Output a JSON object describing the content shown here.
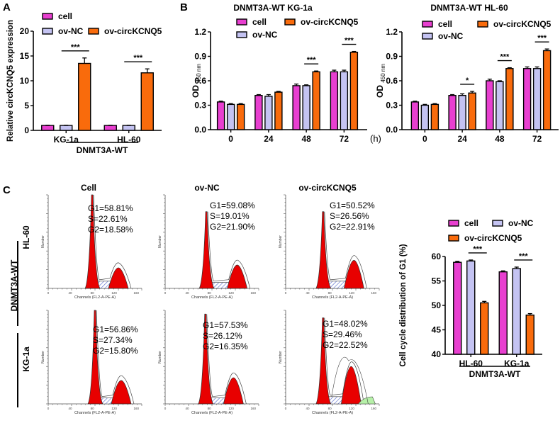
{
  "colors": {
    "cell": "#e83fd0",
    "ov_NC": "#c4c3f2",
    "ov_circKCNQ5": "#f96b0c",
    "flow_red": "#e80000",
    "flow_sphase_hatch": "#4f63c9",
    "flow_green": "#b6f0a8"
  },
  "panels": {
    "A": {
      "letter": "A"
    },
    "B": {
      "letter": "B"
    },
    "C": {
      "letter": "C"
    }
  },
  "chart_data": [
    {
      "id": "A",
      "type": "bar",
      "title": "",
      "ylabel": "Relative circKCNQ5 expression",
      "xlabel": "",
      "group_label": "DNMT3A-WT",
      "ylim": [
        0,
        20
      ],
      "yticks": [
        "0",
        "5",
        "10",
        "15",
        "20"
      ],
      "categories": [
        "KG-1a",
        "HL-60"
      ],
      "legend": [
        "cell",
        "ov-NC",
        "ov-circKCNQ5"
      ],
      "legend_placement": "top",
      "series": [
        {
          "name": "cell",
          "values": [
            1.0,
            1.0
          ],
          "errors": [
            0.05,
            0.05
          ]
        },
        {
          "name": "ov-NC",
          "values": [
            1.0,
            1.0
          ],
          "errors": [
            0.05,
            0.05
          ]
        },
        {
          "name": "ov-circKCNQ5",
          "values": [
            13.5,
            11.6
          ],
          "errors": [
            1.1,
            0.8
          ]
        }
      ],
      "significance": [
        {
          "category": "KG-1a",
          "label": "***"
        },
        {
          "category": "HL-60",
          "label": "***"
        }
      ]
    },
    {
      "id": "B1",
      "type": "bar",
      "title": "DNMT3A-WT KG-1a",
      "ylabel": "OD 450 nm",
      "ylabel_main": "OD",
      "ylabel_sub": "450 nm",
      "xlabel": "(h)",
      "ylim": [
        0,
        1.2
      ],
      "yticks": [
        "0.0",
        "0.3",
        "0.6",
        "0.9",
        "1.2"
      ],
      "categories": [
        "0",
        "24",
        "48",
        "72"
      ],
      "legend": [
        "cell",
        "ov-NC",
        "ov-circKCNQ5"
      ],
      "legend_placement": "top",
      "series": [
        {
          "name": "cell",
          "values": [
            0.34,
            0.42,
            0.54,
            0.71
          ],
          "errors": [
            0.01,
            0.01,
            0.02,
            0.02
          ]
        },
        {
          "name": "ov-NC",
          "values": [
            0.31,
            0.41,
            0.54,
            0.71
          ],
          "errors": [
            0.01,
            0.02,
            0.01,
            0.02
          ]
        },
        {
          "name": "ov-circKCNQ5",
          "values": [
            0.31,
            0.46,
            0.71,
            0.95
          ],
          "errors": [
            0.01,
            0.01,
            0.01,
            0.01
          ]
        }
      ],
      "significance": [
        {
          "category": "48",
          "label": "***"
        },
        {
          "category": "72",
          "label": "***"
        }
      ]
    },
    {
      "id": "B2",
      "type": "bar",
      "title": "DNMT3A-WT HL-60",
      "ylabel": "OD 450 nm",
      "ylabel_main": "OD",
      "ylabel_sub": "450 nm",
      "xlabel": "(h)",
      "ylim": [
        0,
        1.2
      ],
      "yticks": [
        "0.0",
        "0.3",
        "0.6",
        "0.9",
        "1.2"
      ],
      "categories": [
        "0",
        "24",
        "48",
        "72"
      ],
      "legend": [
        "cell",
        "ov-NC",
        "ov-circKCNQ5"
      ],
      "legend_placement": "top",
      "series": [
        {
          "name": "cell",
          "values": [
            0.34,
            0.42,
            0.6,
            0.75
          ],
          "errors": [
            0.01,
            0.01,
            0.02,
            0.02
          ]
        },
        {
          "name": "ov-NC",
          "values": [
            0.3,
            0.42,
            0.59,
            0.75
          ],
          "errors": [
            0.01,
            0.02,
            0.01,
            0.02
          ]
        },
        {
          "name": "ov-circKCNQ5",
          "values": [
            0.31,
            0.45,
            0.75,
            0.97
          ],
          "errors": [
            0.01,
            0.02,
            0.01,
            0.02
          ]
        }
      ],
      "significance": [
        {
          "category": "24",
          "label": "*"
        },
        {
          "category": "48",
          "label": "***"
        },
        {
          "category": "72",
          "label": "***"
        }
      ]
    },
    {
      "id": "C-bar",
      "type": "bar",
      "title": "",
      "ylabel": "Cell cycle distribution of G1 (%)",
      "xlabel": "",
      "group_label": "DNMT3A-WT",
      "ylim": [
        40,
        60
      ],
      "yticks": [
        "40",
        "45",
        "50",
        "55",
        "60"
      ],
      "categories": [
        "HL-60",
        "KG-1a"
      ],
      "legend": [
        "cell",
        "ov-NC",
        "ov-circKCNQ5"
      ],
      "legend_placement": "top",
      "series": [
        {
          "name": "cell",
          "values": [
            58.81,
            56.86
          ],
          "errors": [
            0.2,
            0.2
          ]
        },
        {
          "name": "ov-NC",
          "values": [
            59.08,
            57.53
          ],
          "errors": [
            0.2,
            0.3
          ]
        },
        {
          "name": "ov-circKCNQ5",
          "values": [
            50.52,
            48.02
          ],
          "errors": [
            0.3,
            0.3
          ]
        }
      ],
      "significance": [
        {
          "category": "HL-60",
          "label": "***"
        },
        {
          "category": "KG-1a",
          "label": "***"
        }
      ]
    }
  ],
  "flow": {
    "column_titles": [
      "Cell",
      "ov-NC",
      "ov-circKCNQ5"
    ],
    "row_labels": [
      "HL-60",
      "KG-1a"
    ],
    "side_label": "DNMT3A-WT",
    "x_axis_label": "Channels (FL2-A-PE-A)",
    "y_axis_label": "Number",
    "x_ticks": [
      "0",
      "40",
      "80",
      "120",
      "160"
    ],
    "histograms": [
      {
        "row": "HL-60",
        "col": "Cell",
        "G1": "G1=58.81%",
        "S": "S=22.61%",
        "G2": "G2=18.58%"
      },
      {
        "row": "HL-60",
        "col": "ov-NC",
        "G1": "G1=59.08%",
        "S": "S=19.01%",
        "G2": "G2=21.90%"
      },
      {
        "row": "HL-60",
        "col": "ov-circKCNQ5",
        "G1": "G1=50.52%",
        "S": "S=26.56%",
        "G2": "G2=22.91%"
      },
      {
        "row": "KG-1a",
        "col": "Cell",
        "G1": "G1=56.86%",
        "S": "S=27.34%",
        "G2": "G2=15.80%"
      },
      {
        "row": "KG-1a",
        "col": "ov-NC",
        "G1": "G1=57.53%",
        "S": "S=26.12%",
        "G2": "G2=16.35%"
      },
      {
        "row": "KG-1a",
        "col": "ov-circKCNQ5",
        "G1": "G1=48.02%",
        "S": "S=29.46%",
        "G2": "G2=22.52%"
      }
    ]
  }
}
